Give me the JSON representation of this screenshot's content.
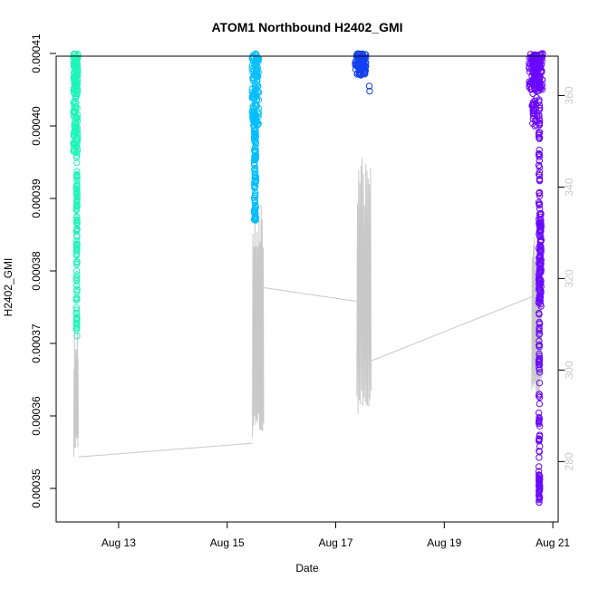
{
  "chart_data": {
    "type": "scatter",
    "title": "ATOM1 Northbound H2402_GMI",
    "xlabel": "Date",
    "ylabel": "H2402_GMI",
    "secondary_ylabel": "",
    "x_ticks": [
      {
        "date": "2023-08-13",
        "label": "Aug 13"
      },
      {
        "date": "2023-08-15",
        "label": "Aug 15"
      },
      {
        "date": "2023-08-17",
        "label": "Aug 17"
      },
      {
        "date": "2023-08-19",
        "label": "Aug 19"
      },
      {
        "date": "2023-08-21",
        "label": "Aug 21"
      }
    ],
    "xlim": [
      "2023-08-12T00:00",
      "2023-08-21T00:00"
    ],
    "ylim": [
      0.00034525,
      0.00041
    ],
    "y_ticks": [
      0.00035,
      0.00036,
      0.00037,
      0.00038,
      0.00039,
      0.0004,
      0.00041
    ],
    "y_tick_labels": [
      "0.00035",
      "0.00036",
      "0.00037",
      "0.00038",
      "0.00039",
      "0.00040",
      "0.00041"
    ],
    "y2lim": [
      266.6,
      369.2
    ],
    "y2_ticks": [
      280,
      300,
      320,
      340,
      360
    ],
    "y2_tick_labels": [
      "280",
      "300",
      "320",
      "340",
      "360"
    ],
    "grid": false,
    "colors": {
      "series1": "#1DF5B9",
      "series2": "#00BFFF",
      "series3": "#1240F2",
      "series4": "#6B08FF",
      "gray_line": "#c8c8c8",
      "axis": "#000000"
    },
    "scatter_series": [
      {
        "color": "#1DF5B9",
        "dense": [
          {
            "x": "2023-08-12T05:00",
            "y_min": 0.0003965,
            "y_max": 0.00041,
            "w": 0.16,
            "n": 150
          },
          {
            "x": "2023-08-12T05:30",
            "y_min": 0.000371,
            "y_max": 0.0003965,
            "w": 0.03,
            "n": 110
          }
        ],
        "points": []
      },
      {
        "color": "#00BFFF",
        "dense": [
          {
            "x": "2023-08-15T12:30",
            "y_min": 0.0004,
            "y_max": 0.00041,
            "w": 0.25,
            "n": 120
          },
          {
            "x": "2023-08-15T12:20",
            "y_min": 0.000387,
            "y_max": 0.0004,
            "w": 0.07,
            "n": 90
          }
        ],
        "points": []
      },
      {
        "color": "#1240F2",
        "dense": [
          {
            "x": "2023-08-17T11:00",
            "y_min": 0.000407,
            "y_max": 0.00041,
            "w": 0.4,
            "n": 90
          }
        ],
        "points": [
          {
            "x": "2023-08-17T14:50",
            "y": 0.0004055
          },
          {
            "x": "2023-08-17T15:00",
            "y": 0.0004048
          }
        ]
      },
      {
        "color": "#6B08FF",
        "dense": [
          {
            "x": "2023-08-20T16:30",
            "y_min": 0.000405,
            "y_max": 0.00041,
            "w": 0.5,
            "n": 120
          },
          {
            "x": "2023-08-20T16:00",
            "y_min": 0.0004,
            "y_max": 0.00041,
            "w": 0.2,
            "n": 60
          },
          {
            "x": "2023-08-20T18:30",
            "y_min": 0.000375,
            "y_max": 0.000388,
            "w": 0.06,
            "n": 80
          },
          {
            "x": "2023-08-20T18:00",
            "y_min": 0.00035,
            "y_max": 0.00041,
            "w": 0.04,
            "n": 160
          },
          {
            "x": "2023-08-20T18:00",
            "y_min": 0.000348,
            "y_max": 0.000352,
            "w": 0.04,
            "n": 40
          }
        ],
        "points": []
      }
    ],
    "secondary_line": {
      "color": "#c8c8c8",
      "oscillations": [
        {
          "x_start": "2023-08-12T04:10",
          "x_end": "2023-08-12T06:10",
          "y_low": 281,
          "y_high": 311,
          "n": 16
        },
        {
          "x_start": "2023-08-15T11:10",
          "x_end": "2023-08-15T16:10",
          "y_low": 285,
          "y_high": 338,
          "n": 22
        },
        {
          "x_start": "2023-08-17T09:20",
          "x_end": "2023-08-17T15:40",
          "y_low": 290,
          "y_high": 347,
          "n": 24
        },
        {
          "x_start": "2023-08-20T14:40",
          "x_end": "2023-08-20T19:00",
          "y_low": 293,
          "y_high": 335,
          "n": 18
        }
      ],
      "connectors": [
        {
          "x1": "2023-08-12T06:10",
          "y1": 281,
          "x2": "2023-08-15T11:10",
          "y2": 284
        },
        {
          "x1": "2023-08-15T16:10",
          "y1": 318,
          "x2": "2023-08-17T09:20",
          "y2": 315
        },
        {
          "x1": "2023-08-17T15:40",
          "y1": 302,
          "x2": "2023-08-20T14:40",
          "y2": 316
        }
      ]
    }
  }
}
